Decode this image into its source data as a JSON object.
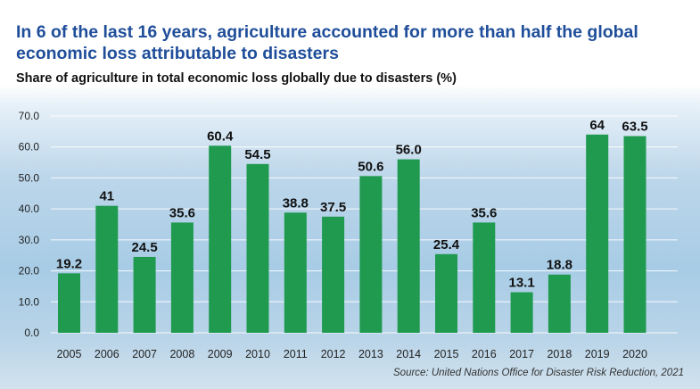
{
  "title": "In 6 of the last 16 years, agriculture accounted for more than half the global economic loss attributable to disasters",
  "subtitle": "Share of agriculture in total economic loss globally due to disasters (%)",
  "source": "Source: United Nations Office for Disaster Risk Reduction, 2021",
  "colors": {
    "bar": "#1f9a4f",
    "grid": "#ffffff",
    "title": "#1f4e9a"
  },
  "chart_data": {
    "type": "bar",
    "categories": [
      "2005",
      "2006",
      "2007",
      "2008",
      "2009",
      "2010",
      "2011",
      "2012",
      "2013",
      "2014",
      "2015",
      "2016",
      "2017",
      "2018",
      "2019",
      "2020"
    ],
    "values": [
      19.2,
      41,
      24.5,
      35.6,
      60.4,
      54.5,
      38.8,
      37.5,
      50.6,
      56.0,
      25.4,
      35.6,
      13.1,
      18.8,
      64,
      63.5
    ],
    "value_labels": [
      "19.2",
      "41",
      "24.5",
      "35.6",
      "60.4",
      "54.5",
      "38.8",
      "37.5",
      "50.6",
      "56.0",
      "25.4",
      "35.6",
      "13.1",
      "18.8",
      "64",
      "63.5"
    ],
    "ylim": [
      0,
      70
    ],
    "yticks": [
      "0.0",
      "10.0",
      "20.0",
      "30.0",
      "40.0",
      "50.0",
      "60.0",
      "70.0"
    ],
    "grid": true
  }
}
